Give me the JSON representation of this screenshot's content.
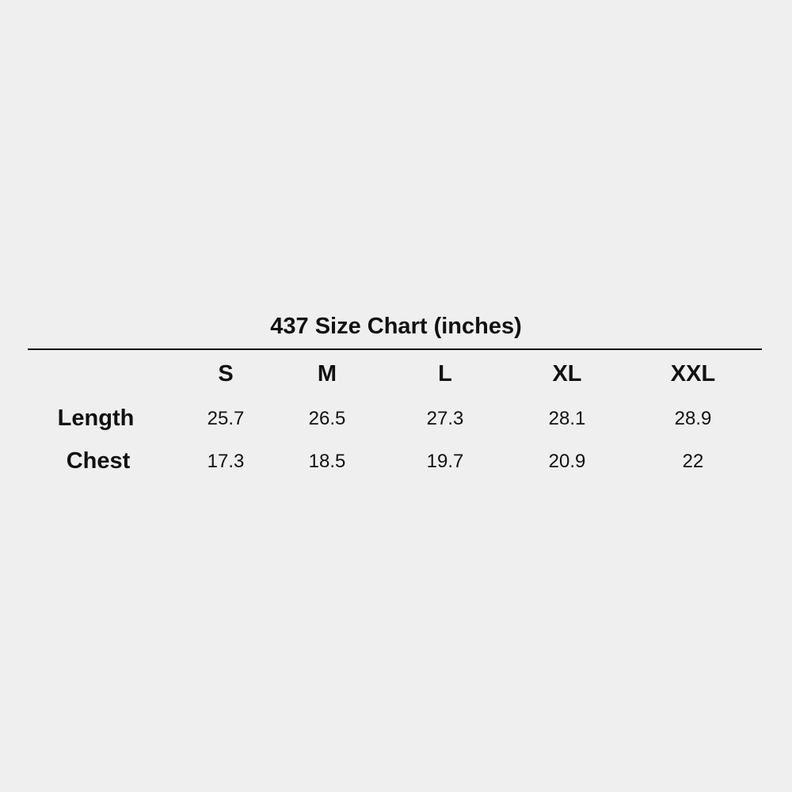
{
  "title": "437 Size Chart (inches)",
  "columns": [
    "S",
    "M",
    "L",
    "XL",
    "XXL"
  ],
  "rows": [
    {
      "label": "Length",
      "values": [
        "25.7",
        "26.5",
        "27.3",
        "28.1",
        "28.9"
      ]
    },
    {
      "label": "Chest",
      "values": [
        "17.3",
        "18.5",
        "19.7",
        "20.9",
        "22"
      ]
    }
  ]
}
